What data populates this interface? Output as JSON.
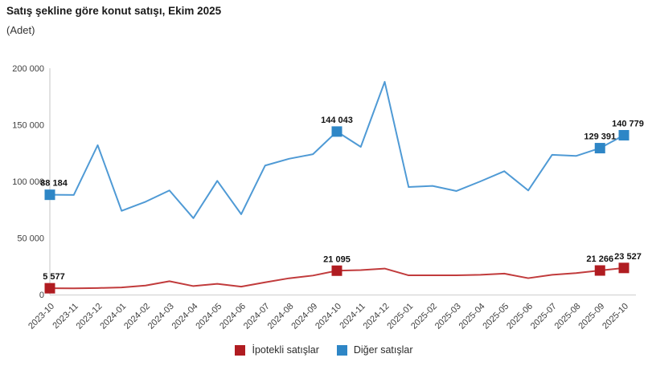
{
  "chart_data": {
    "type": "line",
    "title": "Satış şekline göre konut satışı, Ekim 2025",
    "unit_label": "(Adet)",
    "xlabel": "",
    "ylabel": "",
    "ylim": [
      0,
      200000
    ],
    "grid": false,
    "legend_position": "bottom",
    "colors": {
      "axis_line": "#d9d9d9",
      "tick_text": "#404040",
      "data_label_text": "#111111"
    },
    "y_ticks": [
      {
        "value": 0,
        "label": "0"
      },
      {
        "value": 50000,
        "label": "50 000"
      },
      {
        "value": 100000,
        "label": "100 000"
      },
      {
        "value": 150000,
        "label": "150 000"
      },
      {
        "value": 200000,
        "label": "200 000"
      }
    ],
    "categories": [
      "2023-10",
      "2023-11",
      "2023-12",
      "2024-01",
      "2024-02",
      "2024-03",
      "2024-04",
      "2024-05",
      "2024-06",
      "2024-07",
      "2024-08",
      "2024-09",
      "2024-10",
      "2024-11",
      "2024-12",
      "2025-01",
      "2025-02",
      "2025-03",
      "2025-04",
      "2025-05",
      "2025-06",
      "2025-07",
      "2025-08",
      "2025-09",
      "2025-10"
    ],
    "series": [
      {
        "name": "İpotekli satışlar",
        "marker_color": "#b01c21",
        "line_color": "#c13b3c",
        "values": [
          5577,
          5500,
          5800,
          6300,
          8000,
          11800,
          7500,
          9500,
          7000,
          10800,
          14400,
          16800,
          21095,
          21600,
          23000,
          17000,
          17000,
          17000,
          17500,
          18500,
          14500,
          17500,
          19000,
          21266,
          23527
        ],
        "labels": [
          {
            "index": 0,
            "text": "5 577"
          },
          {
            "index": 12,
            "text": "21 095"
          },
          {
            "index": 23,
            "text": "21 266"
          },
          {
            "index": 24,
            "text": "23 527"
          }
        ]
      },
      {
        "name": "Diğer satışlar",
        "marker_color": "#2e86c6",
        "line_color": "#4f9ad5",
        "values": [
          88184,
          88000,
          132000,
          74000,
          82000,
          92000,
          67500,
          100500,
          71000,
          114000,
          120000,
          124000,
          144043,
          130500,
          188000,
          95000,
          96000,
          91500,
          100000,
          109000,
          92000,
          123500,
          122500,
          129391,
          140779
        ],
        "labels": [
          {
            "index": 0,
            "text": "88 184"
          },
          {
            "index": 12,
            "text": "144 043"
          },
          {
            "index": 23,
            "text": "129 391"
          },
          {
            "index": 24,
            "text": "140 779"
          }
        ]
      }
    ]
  }
}
